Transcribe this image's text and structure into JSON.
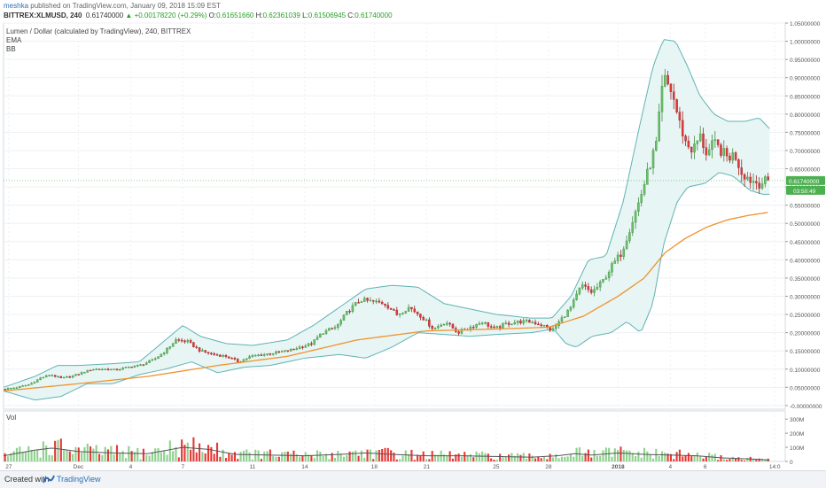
{
  "header": {
    "user": "meshka",
    "published": "published on TradingView.com, January 09, 2018 15:09 EST",
    "symbol": "BITTREX:XLMUSD, 240",
    "last": "0.61740000",
    "change": "▲ +0.00178220 (+0.29%)",
    "o_label": "O:",
    "o_value": "0.61651660",
    "h_label": "H:",
    "h_value": "0.62361039",
    "l_label": "L:",
    "l_value": "0.61506945",
    "c_label": "C:",
    "c_value": "0.61740000"
  },
  "legend": {
    "title": "Lumen / Dollar (calculated by TradingView), 240, BITTREX",
    "ema": "EMA",
    "bb": "BB",
    "vol": "Vol"
  },
  "price_label": "0.61740000",
  "countdown_label": "03:50:49",
  "footer": {
    "created_with": "Created with",
    "brand": "TradingView"
  },
  "colors": {
    "up": "#6bbf6b",
    "down": "#e03b3b",
    "ema": "#f0922b",
    "bb": "#5fb3b3",
    "bb_fill": "#e8f5f5",
    "vol_up": "#8fd08f",
    "vol_down": "#e53935",
    "vol_ma": "#555555",
    "price_tag": "#4caf50",
    "grid": "#eef0f3"
  },
  "chart_data": [
    {
      "type": "candlestick",
      "title": "Lumen / Dollar (calculated by TradingView), 240, BITTREX",
      "y_ticks": [
        "-0.00000000",
        "0.05000000",
        "0.10000000",
        "0.15000000",
        "0.20000000",
        "0.25000000",
        "0.30000000",
        "0.35000000",
        "0.40000000",
        "0.45000000",
        "0.50000000",
        "0.55000000",
        "0.60000000",
        "0.65000000",
        "0.70000000",
        "0.75000000",
        "0.80000000",
        "0.85000000",
        "0.90000000",
        "0.95000000",
        "1.00000000",
        "1.05000000"
      ],
      "ylim": [
        -0.01,
        1.05
      ],
      "x_ticks": [
        {
          "label": "27",
          "day": 0
        },
        {
          "label": "Dec",
          "day": 4
        },
        {
          "label": "4",
          "day": 7
        },
        {
          "label": "7",
          "day": 10
        },
        {
          "label": "11",
          "day": 14
        },
        {
          "label": "14",
          "day": 17
        },
        {
          "label": "18",
          "day": 21
        },
        {
          "label": "21",
          "day": 24
        },
        {
          "label": "25",
          "day": 28
        },
        {
          "label": "28",
          "day": 31
        },
        {
          "label": "2018",
          "day": 35
        },
        {
          "label": "4",
          "day": 38
        },
        {
          "label": "6",
          "day": 40
        },
        {
          "label": "14:0",
          "day": 44
        }
      ],
      "series": [
        {
          "name": "close",
          "points": [
            [
              -0.3,
              0.045
            ],
            [
              0.5,
              0.05
            ],
            [
              1.2,
              0.058
            ],
            [
              1.8,
              0.075
            ],
            [
              2.4,
              0.085
            ],
            [
              3.0,
              0.075
            ],
            [
              3.6,
              0.08
            ],
            [
              4.2,
              0.09
            ],
            [
              4.8,
              0.1
            ],
            [
              5.5,
              0.1
            ],
            [
              6.2,
              0.098
            ],
            [
              6.8,
              0.105
            ],
            [
              7.5,
              0.11
            ],
            [
              8.3,
              0.125
            ],
            [
              9.0,
              0.15
            ],
            [
              9.6,
              0.18
            ],
            [
              10.3,
              0.175
            ],
            [
              11.0,
              0.15
            ],
            [
              11.8,
              0.14
            ],
            [
              12.5,
              0.135
            ],
            [
              13.2,
              0.12
            ],
            [
              13.9,
              0.135
            ],
            [
              14.6,
              0.14
            ],
            [
              15.3,
              0.145
            ],
            [
              16.0,
              0.15
            ],
            [
              16.7,
              0.16
            ],
            [
              17.4,
              0.17
            ],
            [
              18.0,
              0.2
            ],
            [
              18.8,
              0.215
            ],
            [
              19.5,
              0.26
            ],
            [
              20.2,
              0.29
            ],
            [
              20.9,
              0.285
            ],
            [
              21.6,
              0.28
            ],
            [
              22.3,
              0.25
            ],
            [
              23.0,
              0.27
            ],
            [
              23.7,
              0.245
            ],
            [
              24.4,
              0.21
            ],
            [
              25.1,
              0.23
            ],
            [
              25.8,
              0.2
            ],
            [
              26.5,
              0.215
            ],
            [
              27.2,
              0.23
            ],
            [
              27.9,
              0.21
            ],
            [
              28.6,
              0.225
            ],
            [
              29.3,
              0.23
            ],
            [
              30.0,
              0.23
            ],
            [
              30.7,
              0.22
            ],
            [
              31.2,
              0.205
            ],
            [
              31.7,
              0.235
            ],
            [
              32.3,
              0.27
            ],
            [
              32.9,
              0.33
            ],
            [
              33.5,
              0.31
            ],
            [
              34.1,
              0.34
            ],
            [
              34.6,
              0.38
            ],
            [
              35.2,
              0.42
            ],
            [
              35.7,
              0.49
            ],
            [
              36.2,
              0.56
            ],
            [
              36.7,
              0.64
            ],
            [
              37.2,
              0.72
            ],
            [
              37.6,
              0.9
            ],
            [
              38.1,
              0.86
            ],
            [
              38.5,
              0.78
            ],
            [
              38.9,
              0.72
            ],
            [
              39.3,
              0.7
            ],
            [
              39.7,
              0.74
            ],
            [
              40.1,
              0.69
            ],
            [
              40.5,
              0.72
            ],
            [
              40.9,
              0.7
            ],
            [
              41.3,
              0.68
            ],
            [
              41.7,
              0.69
            ],
            [
              42.1,
              0.64
            ],
            [
              42.6,
              0.62
            ],
            [
              43.1,
              0.61
            ],
            [
              43.6,
              0.617
            ]
          ]
        },
        {
          "name": "EMA",
          "points": [
            [
              -0.3,
              0.04
            ],
            [
              4,
              0.06
            ],
            [
              8,
              0.08
            ],
            [
              12,
              0.11
            ],
            [
              16,
              0.135
            ],
            [
              20,
              0.18
            ],
            [
              24,
              0.205
            ],
            [
              28,
              0.21
            ],
            [
              31,
              0.215
            ],
            [
              33,
              0.245
            ],
            [
              35,
              0.3
            ],
            [
              36.5,
              0.35
            ],
            [
              37.7,
              0.42
            ],
            [
              38.9,
              0.46
            ],
            [
              40.1,
              0.49
            ],
            [
              41.3,
              0.51
            ],
            [
              42.5,
              0.522
            ],
            [
              43.6,
              0.53
            ]
          ]
        },
        {
          "name": "BB upper",
          "points": [
            [
              -0.3,
              0.05
            ],
            [
              1.5,
              0.08
            ],
            [
              2.8,
              0.11
            ],
            [
              4,
              0.11
            ],
            [
              6,
              0.115
            ],
            [
              7.5,
              0.12
            ],
            [
              9,
              0.18
            ],
            [
              10,
              0.22
            ],
            [
              11,
              0.19
            ],
            [
              12.5,
              0.17
            ],
            [
              14,
              0.165
            ],
            [
              16,
              0.18
            ],
            [
              17.5,
              0.22
            ],
            [
              19,
              0.27
            ],
            [
              20.5,
              0.32
            ],
            [
              22,
              0.33
            ],
            [
              23.5,
              0.325
            ],
            [
              25,
              0.28
            ],
            [
              26.5,
              0.265
            ],
            [
              28,
              0.25
            ],
            [
              30,
              0.24
            ],
            [
              31.2,
              0.24
            ],
            [
              32.3,
              0.3
            ],
            [
              33.3,
              0.4
            ],
            [
              34.3,
              0.41
            ],
            [
              35.3,
              0.56
            ],
            [
              36.2,
              0.76
            ],
            [
              37.0,
              0.93
            ],
            [
              37.6,
              1.005
            ],
            [
              38.3,
              1.0
            ],
            [
              39.0,
              0.93
            ],
            [
              39.7,
              0.85
            ],
            [
              40.5,
              0.8
            ],
            [
              41.3,
              0.78
            ],
            [
              42.3,
              0.78
            ],
            [
              43.1,
              0.79
            ],
            [
              43.7,
              0.76
            ]
          ]
        },
        {
          "name": "BB lower",
          "points": [
            [
              -0.3,
              0.04
            ],
            [
              1.5,
              0.015
            ],
            [
              3,
              0.025
            ],
            [
              4.5,
              0.06
            ],
            [
              6,
              0.06
            ],
            [
              7.5,
              0.085
            ],
            [
              9,
              0.1
            ],
            [
              10.5,
              0.12
            ],
            [
              12,
              0.09
            ],
            [
              13.5,
              0.105
            ],
            [
              15,
              0.11
            ],
            [
              17,
              0.13
            ],
            [
              19,
              0.14
            ],
            [
              20.5,
              0.13
            ],
            [
              22,
              0.16
            ],
            [
              23.5,
              0.2
            ],
            [
              25,
              0.195
            ],
            [
              26.5,
              0.19
            ],
            [
              28,
              0.195
            ],
            [
              30,
              0.2
            ],
            [
              31.3,
              0.21
            ],
            [
              32,
              0.17
            ],
            [
              32.6,
              0.16
            ],
            [
              33.5,
              0.19
            ],
            [
              34.6,
              0.2
            ],
            [
              35.5,
              0.23
            ],
            [
              36.3,
              0.2
            ],
            [
              37.0,
              0.28
            ],
            [
              37.6,
              0.44
            ],
            [
              38.4,
              0.56
            ],
            [
              39.0,
              0.6
            ],
            [
              40.0,
              0.61
            ],
            [
              40.8,
              0.64
            ],
            [
              41.6,
              0.63
            ],
            [
              42.6,
              0.59
            ],
            [
              43.3,
              0.58
            ],
            [
              43.7,
              0.58
            ]
          ]
        }
      ]
    },
    {
      "type": "bar",
      "title": "Vol",
      "y_ticks": [
        "0",
        "100M",
        "200M",
        "300M"
      ],
      "ylim": [
        0,
        320
      ],
      "series": [
        {
          "name": "Vol MA",
          "points": [
            [
              -0.3,
              40
            ],
            [
              1.5,
              80
            ],
            [
              2.5,
              95
            ],
            [
              4,
              70
            ],
            [
              6,
              60
            ],
            [
              8,
              55
            ],
            [
              10,
              100
            ],
            [
              11.5,
              85
            ],
            [
              13,
              50
            ],
            [
              15,
              45
            ],
            [
              17,
              40
            ],
            [
              19,
              50
            ],
            [
              20.5,
              60
            ],
            [
              22,
              50
            ],
            [
              24,
              40
            ],
            [
              26,
              40
            ],
            [
              28,
              35
            ],
            [
              30,
              30
            ],
            [
              31.5,
              40
            ],
            [
              32.5,
              55
            ],
            [
              33.5,
              45
            ],
            [
              35,
              60
            ],
            [
              36.5,
              50
            ],
            [
              38,
              45
            ],
            [
              39.5,
              40
            ],
            [
              41,
              25
            ],
            [
              43,
              15
            ],
            [
              43.7,
              10
            ]
          ]
        }
      ]
    }
  ]
}
